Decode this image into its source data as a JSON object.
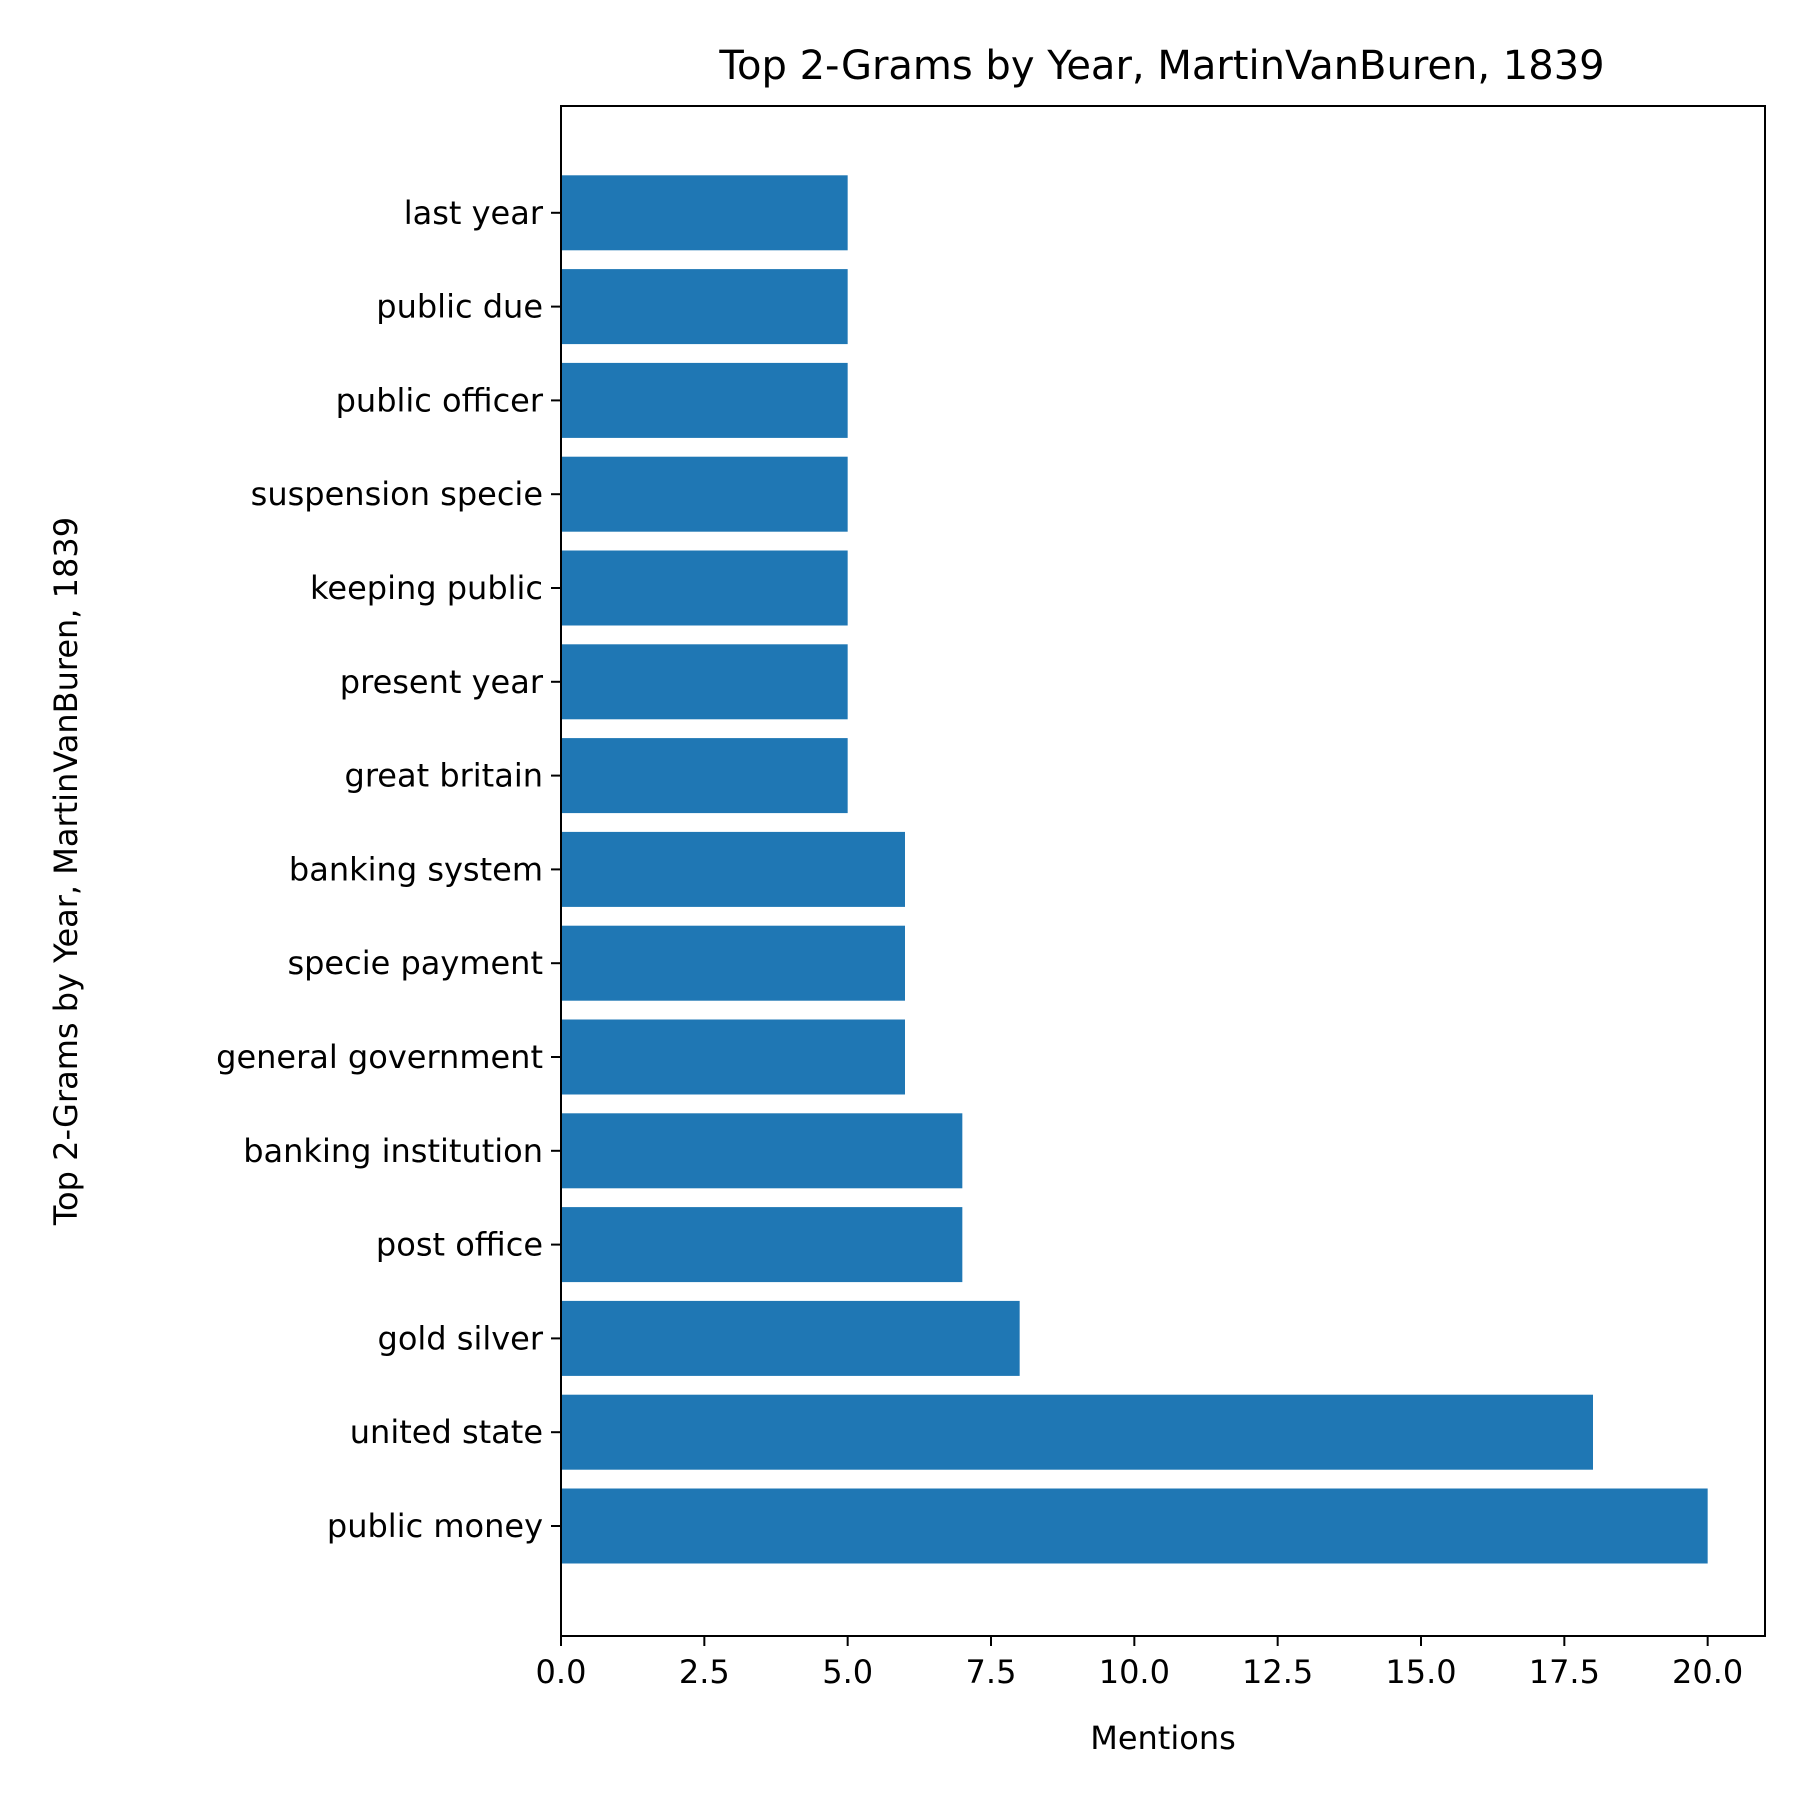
{
  "chart_data": {
    "type": "bar",
    "orientation": "horizontal",
    "title": "Top 2-Grams by Year, MartinVanBuren, 1839",
    "xlabel": "Mentions",
    "ylabel": "Top 2-Grams by Year, MartinVanBuren, 1839",
    "xlim": [
      0,
      21
    ],
    "xticks": [
      0.0,
      2.5,
      5.0,
      7.5,
      10.0,
      12.5,
      15.0,
      17.5,
      20.0
    ],
    "xtick_labels": [
      "0.0",
      "2.5",
      "5.0",
      "7.5",
      "10.0",
      "12.5",
      "15.0",
      "17.5",
      "20.0"
    ],
    "grid": false,
    "legend": "none",
    "bar_color": "#1f77b4",
    "categories": [
      "public money",
      "united state",
      "gold silver",
      "post office",
      "banking institution",
      "general government",
      "specie payment",
      "banking system",
      "great britain",
      "present year",
      "keeping public",
      "suspension specie",
      "public officer",
      "public due",
      "last year"
    ],
    "values": [
      20,
      18,
      8,
      7,
      7,
      6,
      6,
      6,
      5,
      5,
      5,
      5,
      5,
      5,
      5
    ]
  }
}
